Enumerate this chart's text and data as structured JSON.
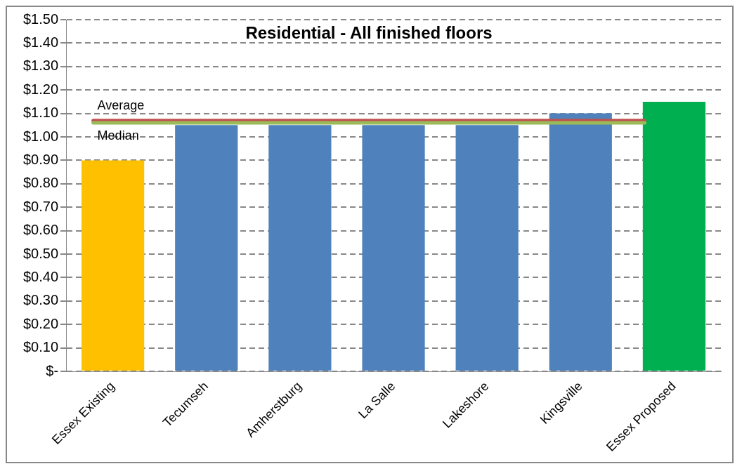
{
  "chart_data": {
    "type": "bar",
    "title": "Residential - All finished floors",
    "categories": [
      "Essex Existing",
      "Tecumseh",
      "Amherstburg",
      "La Salle",
      "Lakeshore",
      "Kingsville",
      "Essex Proposed"
    ],
    "values": [
      0.9,
      1.05,
      1.05,
      1.05,
      1.05,
      1.1,
      1.15
    ],
    "colors": [
      "#ffc000",
      "#4f81bd",
      "#4f81bd",
      "#4f81bd",
      "#4f81bd",
      "#4f81bd",
      "#00b050"
    ],
    "ylim": [
      0,
      1.5
    ],
    "yticks": [
      {
        "value": 0,
        "label": "$-"
      },
      {
        "value": 0.1,
        "label": "$0.10"
      },
      {
        "value": 0.2,
        "label": "$0.20"
      },
      {
        "value": 0.3,
        "label": "$0.30"
      },
      {
        "value": 0.4,
        "label": "$0.40"
      },
      {
        "value": 0.5,
        "label": "$0.50"
      },
      {
        "value": 0.6,
        "label": "$0.60"
      },
      {
        "value": 0.7,
        "label": "$0.70"
      },
      {
        "value": 0.8,
        "label": "$0.80"
      },
      {
        "value": 0.9,
        "label": "$0.90"
      },
      {
        "value": 1.0,
        "label": "$1.00"
      },
      {
        "value": 1.1,
        "label": "$1.10"
      },
      {
        "value": 1.2,
        "label": "$1.20"
      },
      {
        "value": 1.3,
        "label": "$1.30"
      },
      {
        "value": 1.4,
        "label": "$1.40"
      },
      {
        "value": 1.5,
        "label": "$1.50"
      }
    ],
    "grid": "y",
    "legend": false,
    "ref_lines": [
      {
        "axis": "y",
        "value": 1.07,
        "label": "Average",
        "color": "#c0504d"
      },
      {
        "axis": "y",
        "value": 1.06,
        "label": "Median",
        "color": "#9bbb59"
      }
    ]
  }
}
